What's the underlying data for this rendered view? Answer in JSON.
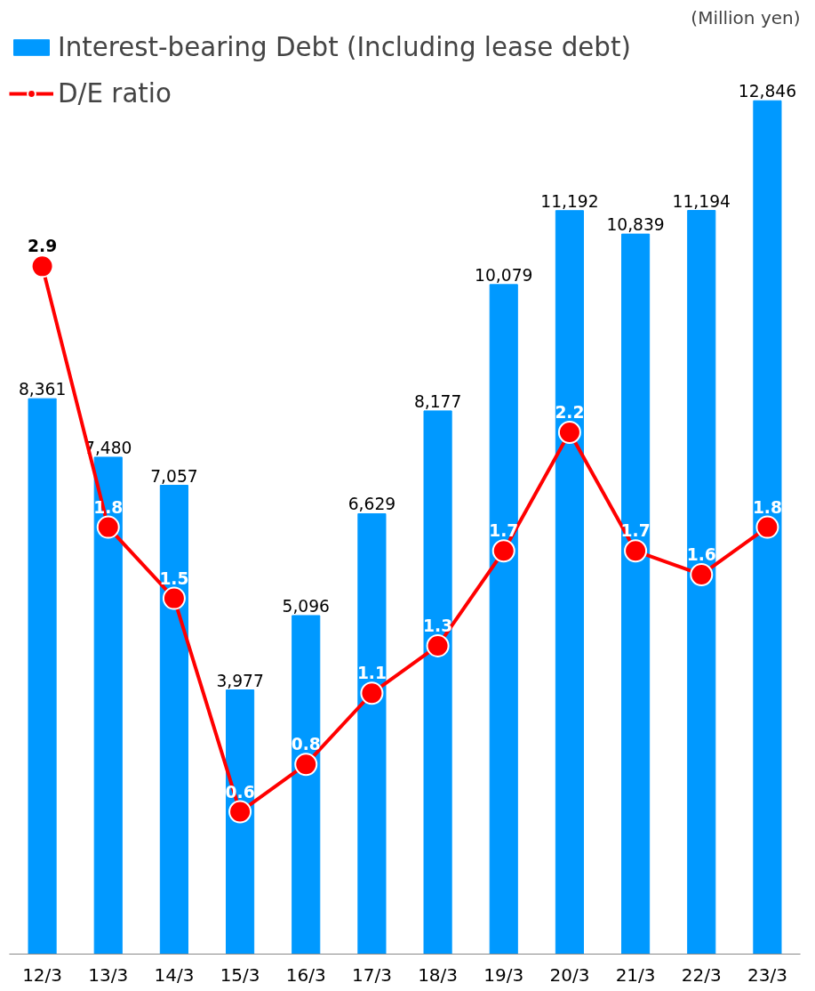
{
  "chart_data": {
    "type": "bar",
    "categories": [
      "12/3",
      "13/3",
      "14/3",
      "15/3",
      "16/3",
      "17/3",
      "18/3",
      "19/3",
      "20/3",
      "21/3",
      "22/3",
      "23/3"
    ],
    "series": [
      {
        "name": "Interest-bearing Debt (Including lease debt)",
        "color": "#0099ff",
        "values": [
          8361,
          7480,
          7057,
          3977,
          5096,
          6629,
          8177,
          10079,
          11192,
          10839,
          11194,
          12846
        ],
        "value_labels": [
          "8,361",
          "7,480",
          "7,057",
          "3,977",
          "5,096",
          "6,629",
          "8,177",
          "10,079",
          "11,192",
          "10,839",
          "11,194",
          "12,846"
        ]
      },
      {
        "name": "D/E ratio",
        "type": "line",
        "axis": "y2",
        "color": "#ff0000",
        "values": [
          2.9,
          1.8,
          1.5,
          0.6,
          0.8,
          1.1,
          1.3,
          1.7,
          2.2,
          1.7,
          1.6,
          1.8
        ]
      }
    ],
    "tick_labels": "x",
    "data_labels": true,
    "grid": false,
    "legend": "top left",
    "marker": "circle",
    "annotations": [
      "(Million yen)"
    ]
  }
}
